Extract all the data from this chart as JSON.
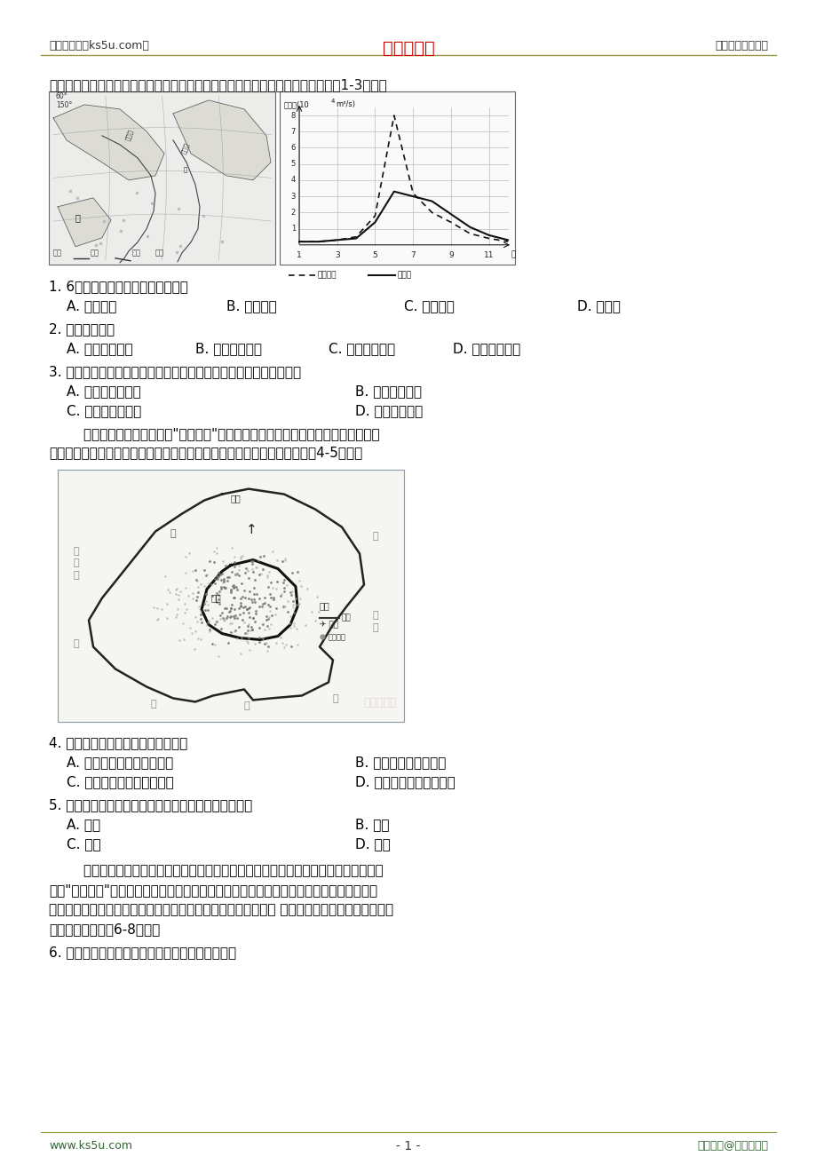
{
  "page_bg": "#ffffff",
  "header_left": "高考资源网（ks5u.com）",
  "header_center": "高考资源网",
  "header_right": "您身边的高考专家",
  "header_center_color": "#cc0000",
  "footer_left": "www.ks5u.com",
  "footer_center": "- 1 -",
  "footer_right": "版权所有@高考资源网",
  "intro1": "下图为鄂毕河与叶尼塞河的位置示意及多年月平均入海径流量统计。据此完成下面1-3小题。",
  "q1_stem": "1. 6月，两条大河的主要补给类型是",
  "q1_A": "A. 大气降水",
  "q1_B": "B. 积雪融水",
  "q1_C": "C. 冰川融水",
  "q1_D": "D. 地下水",
  "q2_stem": "2. 鄂毕河甲河段",
  "q2_A": "A. 冬季封冻断流",
  "q2_B": "B. 水能资源丰富",
  "q2_C": "C. 河水含沙量大",
  "q2_D": "D. 春季凌汛明显",
  "q3_stem": "3. 与叶尼塞河相比，鄂毕河径流量季节变化较小的主要原因是流域内",
  "q3_A": "A. 降水季节变化小",
  "q3_B": "B. 气温年较差小",
  "q3_C": "C. 沼泽洼地面积大",
  "q3_D": "D. 植被覆盖率高",
  "intro2_1": "        餐饮业是城市商业的重要\"引流业态\"，其布局与城市居住、交通、公共服务等空间",
  "intro2_2": "功能密切相关。下图为我国某直辖市城市餐饮业空间分布图。据此完成下列4-5小题。",
  "q4_stem": "4. 该城市餐饮业空间集聚特征是（）",
  "q4_A": "A. 围绕一个核心向四周扩展",
  "q4_B": "B. 沿河流呈条带状延展",
  "q4_C": "C. 围绕多个核心向四周扩展",
  "q4_D": "D. 沿交通线呈条带状延展",
  "q5_stem": "5. 推测图中甲、乙、丙、丁处餐饮业密度最高的是（）",
  "q5_A": "A. 甲处",
  "q5_B": "B. 乙处",
  "q5_C": "C. 丙处",
  "q5_D": "D. 丁处",
  "intro3_1": "        亚麻是一种喜凉爽湿润的农作物。位于加拿大中南部的萨斯喀彻温省（简称萨省）被",
  "intro3_2": "誉为\"产粮之篮\"，也是亚麻种植大省，当地农场主一般采用休耕、轮作的方式进行耕种（体",
  "intro3_3": "耕就是在一段时间内不耕种；轮作是指在同一块土地上，在季节 间或年际间轮换接种植不同的作",
  "intro3_4": "物。据此完成下面6-8小题。",
  "q6_stem": "6. 限制萨省农作物种植采用季间轮作的主要因素是"
}
